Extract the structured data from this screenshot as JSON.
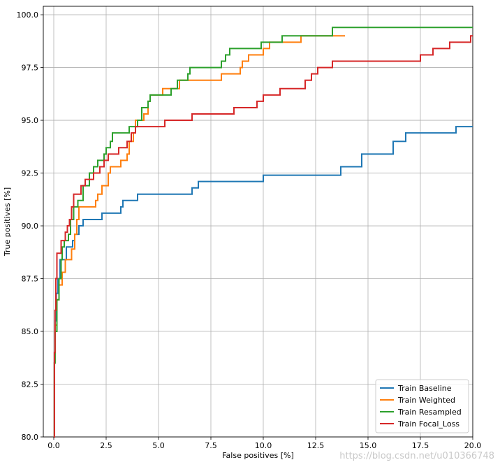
{
  "chart_data": {
    "type": "line",
    "xlabel": "False positives [%]",
    "ylabel": "True positives [%]",
    "xlim": [
      -0.5,
      20
    ],
    "ylim": [
      80,
      100.4
    ],
    "grid": true,
    "legend_position": "lower-right",
    "xticks": [
      "0.0",
      "2.5",
      "5.0",
      "7.5",
      "10.0",
      "12.5",
      "15.0",
      "17.5",
      "20.0"
    ],
    "yticks": [
      "80.0",
      "82.5",
      "85.0",
      "87.5",
      "90.0",
      "92.5",
      "95.0",
      "97.5",
      "100.0"
    ],
    "series": [
      {
        "name": "Train Baseline",
        "color": "#1f77b4",
        "points": [
          [
            0,
            80
          ],
          [
            0.03,
            83.5
          ],
          [
            0.06,
            85.5
          ],
          [
            0.12,
            86.8
          ],
          [
            0.2,
            87.5
          ],
          [
            0.3,
            88.4
          ],
          [
            0.6,
            89.0
          ],
          [
            0.9,
            89.3
          ],
          [
            1.0,
            89.6
          ],
          [
            1.2,
            90.0
          ],
          [
            1.4,
            90.3
          ],
          [
            2.3,
            90.6
          ],
          [
            3.2,
            90.9
          ],
          [
            3.3,
            91.2
          ],
          [
            4.0,
            91.5
          ],
          [
            6.6,
            91.8
          ],
          [
            6.9,
            92.1
          ],
          [
            10.0,
            92.4
          ],
          [
            13.7,
            92.8
          ],
          [
            14.7,
            93.4
          ],
          [
            16.2,
            94.0
          ],
          [
            16.8,
            94.4
          ],
          [
            19.2,
            94.7
          ],
          [
            20.0,
            94.7
          ]
        ]
      },
      {
        "name": "Train Weighted",
        "color": "#ff7f0e",
        "points": [
          [
            0,
            80
          ],
          [
            0.03,
            83.5
          ],
          [
            0.06,
            85.3
          ],
          [
            0.15,
            86.5
          ],
          [
            0.25,
            87.2
          ],
          [
            0.4,
            87.8
          ],
          [
            0.55,
            88.4
          ],
          [
            0.85,
            88.9
          ],
          [
            1.0,
            89.6
          ],
          [
            1.1,
            90.3
          ],
          [
            1.2,
            90.9
          ],
          [
            2.0,
            91.2
          ],
          [
            2.1,
            91.5
          ],
          [
            2.3,
            91.9
          ],
          [
            2.6,
            92.5
          ],
          [
            2.7,
            92.8
          ],
          [
            3.2,
            93.1
          ],
          [
            3.5,
            93.4
          ],
          [
            3.6,
            94.0
          ],
          [
            3.8,
            94.4
          ],
          [
            3.9,
            95.0
          ],
          [
            4.3,
            95.3
          ],
          [
            4.5,
            95.9
          ],
          [
            4.6,
            96.2
          ],
          [
            5.2,
            96.5
          ],
          [
            6.0,
            96.9
          ],
          [
            8.0,
            97.2
          ],
          [
            8.9,
            97.5
          ],
          [
            9.0,
            97.8
          ],
          [
            9.3,
            98.1
          ],
          [
            10.0,
            98.4
          ],
          [
            10.3,
            98.7
          ],
          [
            11.8,
            99.0
          ],
          [
            13.9,
            99.0
          ]
        ]
      },
      {
        "name": "Train Resampled",
        "color": "#2ca02c",
        "points": [
          [
            0,
            80
          ],
          [
            0.03,
            83.5
          ],
          [
            0.06,
            85.0
          ],
          [
            0.15,
            86.5
          ],
          [
            0.25,
            87.5
          ],
          [
            0.35,
            88.4
          ],
          [
            0.4,
            89.0
          ],
          [
            0.5,
            89.3
          ],
          [
            0.7,
            89.6
          ],
          [
            0.8,
            90.3
          ],
          [
            0.95,
            90.9
          ],
          [
            1.15,
            91.2
          ],
          [
            1.4,
            91.9
          ],
          [
            1.7,
            92.5
          ],
          [
            1.9,
            92.8
          ],
          [
            2.1,
            93.1
          ],
          [
            2.4,
            93.4
          ],
          [
            2.5,
            93.7
          ],
          [
            2.7,
            94.0
          ],
          [
            2.8,
            94.4
          ],
          [
            3.6,
            94.7
          ],
          [
            4.0,
            95.0
          ],
          [
            4.2,
            95.6
          ],
          [
            4.5,
            95.9
          ],
          [
            4.6,
            96.2
          ],
          [
            5.6,
            96.5
          ],
          [
            5.9,
            96.9
          ],
          [
            6.4,
            97.2
          ],
          [
            6.5,
            97.5
          ],
          [
            8.0,
            97.8
          ],
          [
            8.2,
            98.1
          ],
          [
            8.4,
            98.4
          ],
          [
            9.9,
            98.7
          ],
          [
            10.9,
            99.0
          ],
          [
            13.3,
            99.4
          ],
          [
            20.0,
            99.4
          ]
        ]
      },
      {
        "name": "Train Focal_Loss",
        "color": "#d62728",
        "points": [
          [
            0,
            80
          ],
          [
            0.03,
            84.0
          ],
          [
            0.06,
            86.0
          ],
          [
            0.1,
            87.5
          ],
          [
            0.15,
            88.7
          ],
          [
            0.35,
            89.3
          ],
          [
            0.55,
            89.7
          ],
          [
            0.65,
            90.0
          ],
          [
            0.75,
            90.3
          ],
          [
            0.85,
            90.9
          ],
          [
            0.95,
            91.5
          ],
          [
            1.3,
            91.9
          ],
          [
            1.5,
            92.2
          ],
          [
            1.9,
            92.5
          ],
          [
            2.2,
            92.8
          ],
          [
            2.4,
            93.1
          ],
          [
            2.6,
            93.4
          ],
          [
            3.1,
            93.7
          ],
          [
            3.5,
            94.0
          ],
          [
            3.7,
            94.4
          ],
          [
            3.9,
            94.7
          ],
          [
            5.3,
            95.0
          ],
          [
            6.6,
            95.3
          ],
          [
            8.6,
            95.6
          ],
          [
            9.7,
            95.9
          ],
          [
            10.0,
            96.2
          ],
          [
            10.8,
            96.5
          ],
          [
            12.0,
            96.9
          ],
          [
            12.3,
            97.2
          ],
          [
            12.6,
            97.5
          ],
          [
            13.3,
            97.8
          ],
          [
            17.5,
            98.1
          ],
          [
            18.1,
            98.4
          ],
          [
            18.9,
            98.7
          ],
          [
            19.9,
            99.0
          ],
          [
            20.0,
            99.0
          ]
        ]
      }
    ]
  },
  "watermark": "https://blog.csdn.net/u010366748"
}
